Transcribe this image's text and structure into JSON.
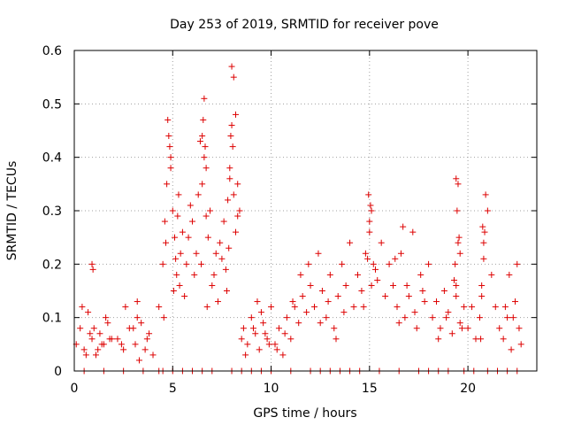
{
  "chart_data": {
    "type": "scatter",
    "title": "Day 253 of 2019, SRMTID for receiver pove",
    "xlabel": "GPS time / hours",
    "ylabel": "SRMTID / TECUs",
    "xlim": [
      0,
      23.5
    ],
    "ylim": [
      0,
      0.6
    ],
    "xticks": [
      0,
      5,
      10,
      15,
      20
    ],
    "xtick_labels": [
      "0",
      "5",
      "10",
      "15",
      "20"
    ],
    "yticks": [
      0,
      0.1,
      0.2,
      0.3,
      0.4,
      0.5,
      0.6
    ],
    "ytick_labels": [
      "0",
      "0.1",
      "0.2",
      "0.3",
      "0.4",
      "0.5",
      "0.6"
    ],
    "grid": true,
    "marker": "plus",
    "color": "#dd0000",
    "series": [
      {
        "name": "SRMTID",
        "x": [
          0.1,
          0.3,
          0.5,
          0.7,
          0.9,
          1.1,
          1.3,
          1.5,
          1.7,
          1.9,
          0.4,
          0.8,
          1.2,
          1.6,
          0.6,
          1.0,
          1.4,
          1.8,
          0.9,
          0.95,
          2.2,
          2.5,
          2.8,
          3.1,
          3.4,
          3.7,
          4.0,
          2.6,
          3.2,
          3.8,
          3.2,
          3.3,
          2.4,
          3.0,
          3.6,
          4.3,
          4.5,
          4.6,
          4.7,
          4.8,
          4.9,
          5.0,
          5.1,
          5.2,
          5.3,
          5.4,
          5.5,
          4.75,
          4.85,
          4.9,
          5.05,
          5.15,
          5.25,
          4.65,
          4.55,
          5.35,
          5.6,
          5.7,
          5.8,
          5.9,
          6.0,
          6.1,
          6.2,
          6.3,
          6.4,
          6.5,
          6.6,
          6.7,
          6.8,
          6.9,
          7.0,
          6.5,
          6.6,
          6.7,
          6.55,
          6.65,
          6.45,
          6.75,
          7.1,
          7.2,
          7.3,
          7.4,
          7.5,
          7.6,
          7.7,
          7.8,
          7.9,
          8.0,
          8.1,
          8.2,
          8.3,
          8.4,
          7.95,
          8.05,
          8.0,
          7.9,
          8.1,
          8.2,
          8.3,
          7.85,
          7.75,
          8.5,
          8.6,
          8.8,
          9.0,
          9.2,
          9.4,
          9.6,
          9.8,
          10.0,
          8.7,
          9.1,
          9.5,
          9.9,
          9.3,
          9.7,
          10.2,
          10.4,
          10.6,
          10.8,
          11.0,
          11.2,
          11.4,
          11.6,
          11.8,
          12.0,
          10.3,
          10.7,
          11.1,
          11.5,
          11.9,
          12.2,
          12.4,
          12.6,
          12.8,
          13.0,
          13.2,
          13.4,
          13.6,
          13.8,
          14.0,
          12.5,
          12.9,
          13.3,
          13.7,
          14.2,
          14.4,
          14.6,
          14.8,
          15.0,
          15.1,
          15.2,
          15.4,
          15.6,
          15.8,
          16.0,
          14.95,
          15.05,
          15.0,
          14.9,
          15.1,
          14.7,
          15.3,
          16.2,
          16.4,
          16.6,
          16.8,
          17.0,
          17.2,
          17.4,
          17.6,
          17.8,
          18.0,
          16.5,
          16.9,
          17.3,
          17.7,
          16.3,
          16.7,
          18.2,
          18.4,
          18.6,
          18.8,
          19.0,
          19.2,
          19.4,
          19.6,
          19.8,
          18.5,
          18.9,
          19.3,
          19.7,
          19.4,
          19.5,
          19.45,
          19.55,
          19.6,
          19.35,
          19.5,
          19.4,
          20.0,
          20.2,
          20.4,
          20.6,
          20.7,
          20.8,
          20.9,
          21.0,
          21.2,
          21.4,
          21.6,
          20.75,
          20.85,
          20.8,
          20.7,
          20.65,
          21.8,
          22.0,
          22.2,
          22.4,
          22.6,
          22.7,
          22.1,
          22.5,
          21.9,
          22.3,
          0.5,
          1.5,
          2.5,
          3.5,
          4.3,
          4.5,
          5.0,
          5.5,
          6.0,
          7.0,
          8.0,
          8.5,
          9.0,
          10.0,
          11.0,
          12.0,
          13.0,
          13.5,
          14.0,
          14.5,
          16.5,
          17.5,
          18.0,
          18.5,
          19.0,
          19.8,
          20.3,
          21.0,
          21.5,
          22.0,
          22.5,
          15.5,
          12.5,
          9.5,
          6.5
        ],
        "y": [
          0.05,
          0.08,
          0.04,
          0.11,
          0.06,
          0.03,
          0.07,
          0.05,
          0.09,
          0.06,
          0.12,
          0.07,
          0.04,
          0.1,
          0.03,
          0.08,
          0.05,
          0.06,
          0.2,
          0.19,
          0.06,
          0.04,
          0.08,
          0.05,
          0.09,
          0.06,
          0.03,
          0.12,
          0.13,
          0.07,
          0.1,
          0.02,
          0.05,
          0.08,
          0.04,
          0.12,
          0.2,
          0.28,
          0.35,
          0.44,
          0.4,
          0.3,
          0.25,
          0.18,
          0.33,
          0.22,
          0.26,
          0.47,
          0.42,
          0.38,
          0.15,
          0.21,
          0.29,
          0.24,
          0.1,
          0.16,
          0.14,
          0.2,
          0.25,
          0.31,
          0.28,
          0.18,
          0.22,
          0.33,
          0.43,
          0.44,
          0.51,
          0.38,
          0.25,
          0.3,
          0.16,
          0.35,
          0.4,
          0.29,
          0.47,
          0.42,
          0.2,
          0.12,
          0.18,
          0.22,
          0.13,
          0.24,
          0.21,
          0.28,
          0.19,
          0.32,
          0.38,
          0.57,
          0.55,
          0.48,
          0.35,
          0.3,
          0.44,
          0.42,
          0.46,
          0.36,
          0.33,
          0.26,
          0.29,
          0.23,
          0.15,
          0.06,
          0.08,
          0.05,
          0.1,
          0.07,
          0.04,
          0.09,
          0.06,
          0.12,
          0.03,
          0.08,
          0.11,
          0.05,
          0.13,
          0.07,
          0.05,
          0.08,
          0.03,
          0.1,
          0.06,
          0.12,
          0.09,
          0.14,
          0.11,
          0.16,
          0.04,
          0.07,
          0.13,
          0.18,
          0.2,
          0.12,
          0.22,
          0.15,
          0.1,
          0.18,
          0.08,
          0.14,
          0.2,
          0.16,
          0.24,
          0.09,
          0.13,
          0.06,
          0.11,
          0.12,
          0.18,
          0.15,
          0.22,
          0.26,
          0.3,
          0.2,
          0.17,
          0.24,
          0.14,
          0.2,
          0.33,
          0.31,
          0.28,
          0.21,
          0.16,
          0.12,
          0.19,
          0.16,
          0.12,
          0.22,
          0.1,
          0.14,
          0.26,
          0.08,
          0.18,
          0.13,
          0.2,
          0.09,
          0.16,
          0.11,
          0.15,
          0.21,
          0.27,
          0.1,
          0.13,
          0.08,
          0.15,
          0.11,
          0.07,
          0.14,
          0.09,
          0.12,
          0.06,
          0.1,
          0.17,
          0.08,
          0.36,
          0.35,
          0.3,
          0.25,
          0.22,
          0.2,
          0.24,
          0.16,
          0.08,
          0.12,
          0.06,
          0.1,
          0.16,
          0.21,
          0.33,
          0.3,
          0.18,
          0.12,
          0.08,
          0.27,
          0.26,
          0.24,
          0.14,
          0.06,
          0.06,
          0.1,
          0.04,
          0.13,
          0.08,
          0.05,
          0.18,
          0.2,
          0.12,
          0.1,
          0,
          0,
          0,
          0,
          0,
          0,
          0,
          0,
          0,
          0,
          0,
          0,
          0,
          0,
          0,
          0,
          0,
          0,
          0,
          0,
          0,
          0,
          0,
          0,
          0,
          0,
          0,
          0,
          0,
          0,
          0,
          0,
          0,
          0,
          0
        ]
      }
    ]
  }
}
